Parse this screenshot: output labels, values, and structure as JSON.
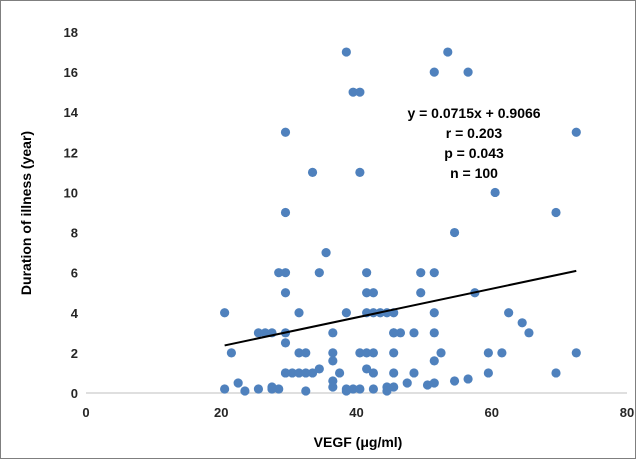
{
  "chart_data": {
    "type": "scatter",
    "xlabel": "VEGF (μg/ml)",
    "ylabel": "Duration of illness (year)",
    "xlim": [
      0,
      80
    ],
    "ylim": [
      0,
      18
    ],
    "x_ticks": [
      0,
      20,
      40,
      60,
      80
    ],
    "y_ticks": [
      0,
      2,
      4,
      6,
      8,
      10,
      12,
      14,
      16,
      18
    ],
    "grid": false,
    "legend": "none",
    "point_color": "#4f81bd",
    "line_color": "#000000",
    "annotations": [
      "y = 0.0715x + 0.9066",
      "r = 0.203",
      "p = 0.043",
      "n = 100"
    ],
    "trendline": {
      "slope": 0.0715,
      "intercept": 0.9066,
      "x_range": [
        20.5,
        72.5
      ]
    },
    "points": [
      [
        20.5,
        4
      ],
      [
        20.5,
        0.2
      ],
      [
        21.5,
        2
      ],
      [
        22.5,
        0.5
      ],
      [
        23.5,
        0.1
      ],
      [
        25.5,
        3
      ],
      [
        25.5,
        0.2
      ],
      [
        26.5,
        3
      ],
      [
        27.5,
        3
      ],
      [
        27.5,
        0.3
      ],
      [
        28.5,
        6
      ],
      [
        28.5,
        0.2
      ],
      [
        29.5,
        13
      ],
      [
        29.5,
        9
      ],
      [
        29.5,
        6
      ],
      [
        29.5,
        5
      ],
      [
        29.5,
        3
      ],
      [
        29.5,
        2.5
      ],
      [
        29.5,
        1
      ],
      [
        30.5,
        1
      ],
      [
        31.5,
        4
      ],
      [
        31.5,
        2
      ],
      [
        31.5,
        1
      ],
      [
        32.5,
        2
      ],
      [
        32.5,
        1
      ],
      [
        32.5,
        0.1
      ],
      [
        33.5,
        11
      ],
      [
        34.5,
        6
      ],
      [
        34.5,
        1.2
      ],
      [
        35.5,
        7
      ],
      [
        36.5,
        3
      ],
      [
        36.5,
        2
      ],
      [
        36.5,
        1.6
      ],
      [
        36.5,
        0.6
      ],
      [
        36.5,
        0.3
      ],
      [
        37.5,
        1
      ],
      [
        38.5,
        17
      ],
      [
        38.5,
        4
      ],
      [
        38.5,
        0.1
      ],
      [
        39.5,
        15
      ],
      [
        39.5,
        0.2
      ],
      [
        40.5,
        15
      ],
      [
        40.5,
        11
      ],
      [
        40.5,
        2
      ],
      [
        40.5,
        0.2
      ],
      [
        41.5,
        6
      ],
      [
        41.5,
        5
      ],
      [
        41.5,
        4
      ],
      [
        41.5,
        2
      ],
      [
        41.5,
        1.2
      ],
      [
        42.5,
        5
      ],
      [
        42.5,
        4
      ],
      [
        42.5,
        2
      ],
      [
        42.5,
        1
      ],
      [
        42.5,
        0.2
      ],
      [
        44.5,
        4
      ],
      [
        44.5,
        0.3
      ],
      [
        44.5,
        0.1
      ],
      [
        45.5,
        4
      ],
      [
        45.5,
        3
      ],
      [
        45.5,
        2
      ],
      [
        45.5,
        1
      ],
      [
        45.5,
        0.3
      ],
      [
        46.5,
        3
      ],
      [
        48.5,
        3
      ],
      [
        48.5,
        1
      ],
      [
        49.5,
        6
      ],
      [
        49.5,
        5
      ],
      [
        50.5,
        0.4
      ],
      [
        51.5,
        16
      ],
      [
        51.5,
        6
      ],
      [
        51.5,
        4
      ],
      [
        51.5,
        3
      ],
      [
        51.5,
        1.6
      ],
      [
        51.5,
        0.5
      ],
      [
        53.5,
        17
      ],
      [
        54.5,
        8
      ],
      [
        54.5,
        0.6
      ],
      [
        56.5,
        16
      ],
      [
        56.5,
        0.7
      ],
      [
        57.5,
        5
      ],
      [
        59.5,
        2
      ],
      [
        59.5,
        1
      ],
      [
        60.5,
        10
      ],
      [
        61.5,
        2
      ],
      [
        62.5,
        4
      ],
      [
        65.5,
        3
      ],
      [
        69.5,
        9
      ],
      [
        69.5,
        1
      ],
      [
        72.5,
        13
      ],
      [
        72.5,
        2
      ],
      [
        45.5,
        3
      ],
      [
        38.5,
        0.2
      ],
      [
        43.5,
        4
      ],
      [
        29.5,
        1
      ],
      [
        52.5,
        2
      ],
      [
        64.5,
        3.5
      ],
      [
        33.5,
        1
      ],
      [
        47.5,
        0.5
      ],
      [
        27.5,
        0.2
      ]
    ]
  }
}
